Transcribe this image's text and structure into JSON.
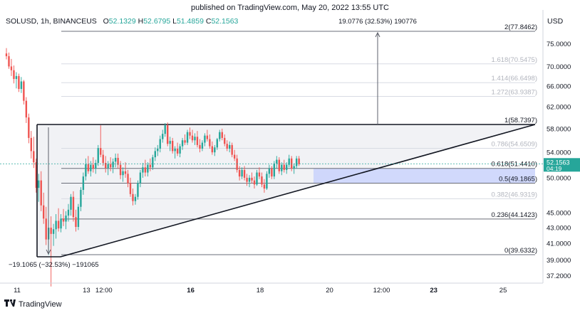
{
  "published": "published on TradingView.com, May 20, 2022 13:55 UTC",
  "legend": {
    "symbol": "SOLUSD, 1h, BINANCEUS",
    "o_label": "O",
    "o": "52.1329",
    "h_label": "H",
    "h": "52.6795",
    "l_label": "L",
    "l": "51.4859",
    "c_label": "C",
    "c": "52.1563"
  },
  "currency": "USD",
  "footer": {
    "brand": "TradingView"
  },
  "colors": {
    "up": "#26a69a",
    "down": "#ef5350",
    "fib_band": "#c9d2fb",
    "triangle_fill": "#f1f2f5",
    "last_price_bg": "#26a69a"
  },
  "chart_data": {
    "type": "candlestick",
    "symbol": "SOLUSD",
    "interval": "1h",
    "exchange": "BINANCEUS",
    "ylim": [
      36.2,
      84.5
    ],
    "y_scale": "log",
    "y_ticks": [
      "75.0000",
      "70.0000",
      "66.0000",
      "62.0000",
      "58.0000",
      "54.0000",
      "50.0000",
      "45.0000",
      "43.0000",
      "41.0000",
      "39.0000",
      "37.2000"
    ],
    "x_ticks": [
      {
        "label": "11",
        "x": 0
      },
      {
        "label": "13",
        "x": 48
      },
      {
        "label": "12:00",
        "x": 60
      },
      {
        "label": "16",
        "x": 120
      },
      {
        "label": "18",
        "x": 168
      },
      {
        "label": "20",
        "x": 216
      },
      {
        "label": "12:00",
        "x": 252
      },
      {
        "label": "23",
        "x": 288
      },
      {
        "label": "25",
        "x": 336
      }
    ],
    "x_tick_bold": [
      "16",
      "23"
    ],
    "last_price": "52.1563",
    "countdown": "04:19",
    "fib_levels": [
      {
        "ratio": "2",
        "price": "77.8462",
        "label": "2(77.8462)",
        "faded": false
      },
      {
        "ratio": "1.618",
        "price": "70.5475",
        "label": "1.618(70.5475)",
        "faded": true
      },
      {
        "ratio": "1.414",
        "price": "66.6498",
        "label": "1.414(66.6498)",
        "faded": true
      },
      {
        "ratio": "1.272",
        "price": "63.9387",
        "label": "1.272(63.9387)",
        "faded": true
      },
      {
        "ratio": "1",
        "price": "58.7397",
        "label": "1(58.7397)",
        "faded": false
      },
      {
        "ratio": "0.786",
        "price": "54.6509",
        "label": "0.786(54.6509)",
        "faded": true
      },
      {
        "ratio": "0.618",
        "price": "51.4410",
        "label": "0.618(51.4410)",
        "faded": false
      },
      {
        "ratio": "0.5",
        "price": "49.1865",
        "label": "0.5(49.1865)",
        "faded": false
      },
      {
        "ratio": "0.382",
        "price": "46.9319",
        "label": "0.382(46.9319)",
        "faded": true
      },
      {
        "ratio": "0.236",
        "price": "44.1423",
        "label": "0.236(44.1423)",
        "faded": false
      },
      {
        "ratio": "0",
        "price": "39.6332",
        "label": "0(39.6332)",
        "faded": false
      }
    ],
    "measure_up_label": "19.0776 (32.53%) 190776",
    "measure_down_label": "−19.1065 (−32.53%) −191065",
    "candles": [
      [
        72.8,
        74.0,
        71.5,
        72.2
      ],
      [
        72.2,
        73.0,
        69.5,
        70.0
      ],
      [
        70.0,
        71.6,
        68.0,
        69.2
      ],
      [
        69.2,
        70.2,
        66.5,
        67.4
      ],
      [
        67.4,
        68.8,
        65.5,
        68.0
      ],
      [
        68.0,
        68.5,
        64.8,
        65.4
      ],
      [
        65.4,
        67.8,
        64.6,
        66.9
      ],
      [
        66.9,
        67.2,
        62.4,
        63.1
      ],
      [
        63.1,
        63.8,
        59.0,
        60.0
      ],
      [
        60.0,
        60.7,
        55.5,
        56.4
      ],
      [
        56.4,
        57.6,
        53.0,
        54.2
      ],
      [
        54.2,
        56.6,
        51.5,
        52.4
      ],
      [
        52.4,
        53.0,
        47.8,
        48.5
      ],
      [
        48.5,
        50.6,
        46.5,
        49.6
      ],
      [
        49.6,
        51.0,
        45.2,
        46.0
      ],
      [
        46.0,
        47.8,
        43.5,
        44.2
      ],
      [
        44.2,
        45.8,
        40.8,
        41.5
      ],
      [
        41.5,
        44.0,
        39.6,
        43.0
      ],
      [
        43.0,
        44.5,
        36.0,
        42.2
      ],
      [
        42.2,
        43.5,
        40.7,
        42.8
      ],
      [
        42.8,
        44.8,
        41.6,
        43.9
      ],
      [
        43.9,
        45.6,
        42.5,
        42.9
      ],
      [
        42.9,
        44.8,
        42.4,
        44.2
      ],
      [
        44.2,
        45.5,
        43.2,
        43.8
      ],
      [
        43.8,
        45.2,
        42.8,
        44.6
      ],
      [
        44.6,
        46.2,
        43.8,
        45.4
      ],
      [
        45.4,
        47.6,
        44.6,
        47.2
      ],
      [
        47.2,
        48.0,
        43.8,
        44.4
      ],
      [
        44.4,
        45.4,
        42.5,
        43.1
      ],
      [
        43.1,
        46.2,
        42.7,
        45.8
      ],
      [
        45.8,
        48.6,
        45.2,
        48.2
      ],
      [
        48.2,
        50.8,
        47.5,
        50.2
      ],
      [
        50.2,
        53.0,
        49.6,
        52.1
      ],
      [
        52.1,
        53.4,
        50.6,
        51.0
      ],
      [
        51.0,
        52.6,
        50.2,
        52.0
      ],
      [
        52.0,
        53.2,
        50.8,
        51.4
      ],
      [
        51.4,
        52.8,
        50.6,
        52.3
      ],
      [
        52.3,
        55.2,
        51.8,
        54.7
      ],
      [
        54.7,
        58.6,
        53.2,
        53.6
      ],
      [
        53.6,
        54.4,
        51.8,
        52.3
      ],
      [
        52.3,
        53.4,
        50.8,
        51.5
      ],
      [
        51.5,
        52.6,
        50.4,
        52.1
      ],
      [
        52.1,
        53.2,
        51.0,
        51.6
      ],
      [
        51.6,
        53.0,
        50.7,
        52.5
      ],
      [
        52.5,
        53.8,
        51.6,
        53.1
      ],
      [
        53.1,
        53.8,
        51.4,
        52.0
      ],
      [
        52.0,
        52.6,
        49.8,
        50.4
      ],
      [
        50.4,
        51.6,
        49.4,
        51.0
      ],
      [
        51.0,
        52.4,
        50.0,
        50.6
      ],
      [
        50.6,
        51.2,
        48.6,
        49.2
      ],
      [
        49.2,
        50.0,
        47.2,
        47.6
      ],
      [
        47.6,
        48.4,
        46.0,
        46.6
      ],
      [
        46.6,
        47.6,
        46.1,
        47.2
      ],
      [
        47.2,
        49.6,
        46.8,
        49.2
      ],
      [
        49.2,
        51.2,
        48.6,
        50.8
      ],
      [
        50.8,
        52.3,
        50.0,
        51.6
      ],
      [
        51.6,
        52.8,
        50.2,
        50.8
      ],
      [
        50.8,
        52.4,
        50.2,
        52.0
      ],
      [
        52.0,
        53.0,
        51.0,
        51.6
      ],
      [
        51.6,
        53.6,
        51.2,
        53.2
      ],
      [
        53.2,
        54.8,
        52.6,
        54.2
      ],
      [
        54.2,
        55.2,
        53.4,
        54.6
      ],
      [
        54.6,
        56.8,
        54.0,
        56.2
      ],
      [
        56.2,
        57.8,
        55.6,
        57.1
      ],
      [
        57.1,
        59.0,
        56.6,
        58.6
      ],
      [
        58.6,
        59.1,
        55.0,
        55.4
      ],
      [
        55.4,
        56.6,
        54.2,
        55.9
      ],
      [
        55.9,
        56.4,
        53.8,
        54.2
      ],
      [
        54.2,
        55.0,
        53.0,
        54.6
      ],
      [
        54.6,
        55.6,
        53.4,
        53.8
      ],
      [
        53.8,
        55.4,
        53.2,
        55.0
      ],
      [
        55.0,
        56.4,
        54.4,
        56.0
      ],
      [
        56.0,
        57.0,
        55.2,
        55.6
      ],
      [
        55.6,
        57.8,
        55.2,
        57.4
      ],
      [
        57.4,
        58.2,
        56.2,
        56.8
      ],
      [
        56.8,
        57.8,
        55.6,
        56.0
      ],
      [
        56.0,
        57.2,
        55.2,
        56.6
      ],
      [
        56.6,
        57.6,
        54.8,
        55.2
      ],
      [
        55.2,
        56.2,
        54.0,
        54.6
      ],
      [
        54.6,
        56.0,
        54.2,
        55.6
      ],
      [
        55.6,
        57.2,
        55.0,
        56.8
      ],
      [
        56.8,
        57.8,
        55.8,
        56.2
      ],
      [
        56.2,
        57.0,
        54.6,
        55.0
      ],
      [
        55.0,
        55.8,
        53.6,
        54.0
      ],
      [
        54.0,
        55.2,
        53.4,
        54.8
      ],
      [
        54.8,
        56.4,
        54.4,
        56.2
      ],
      [
        56.2,
        57.8,
        55.8,
        57.4
      ],
      [
        57.4,
        58.0,
        56.0,
        56.4
      ],
      [
        56.4,
        57.0,
        55.0,
        55.4
      ],
      [
        55.4,
        56.0,
        54.2,
        54.6
      ],
      [
        54.6,
        55.8,
        54.0,
        55.2
      ],
      [
        55.2,
        55.6,
        53.2,
        53.6
      ],
      [
        53.6,
        54.4,
        52.6,
        53.0
      ],
      [
        53.0,
        53.6,
        50.8,
        51.2
      ],
      [
        51.2,
        51.8,
        49.6,
        50.2
      ],
      [
        50.2,
        51.6,
        49.8,
        51.2
      ],
      [
        51.2,
        51.8,
        49.6,
        50.0
      ],
      [
        50.0,
        50.6,
        48.8,
        49.4
      ],
      [
        49.4,
        50.4,
        48.6,
        50.0
      ],
      [
        50.0,
        50.8,
        49.2,
        49.6
      ],
      [
        49.6,
        50.2,
        48.4,
        49.0
      ],
      [
        49.0,
        51.2,
        48.8,
        50.8
      ],
      [
        50.8,
        51.6,
        49.8,
        50.2
      ],
      [
        50.2,
        50.8,
        48.6,
        49.0
      ],
      [
        49.0,
        49.8,
        47.8,
        48.4
      ],
      [
        48.4,
        51.0,
        48.2,
        50.6
      ],
      [
        50.6,
        52.0,
        50.0,
        51.4
      ],
      [
        51.4,
        51.8,
        49.8,
        50.2
      ],
      [
        50.2,
        52.6,
        49.8,
        52.2
      ],
      [
        52.2,
        53.4,
        51.4,
        52.8
      ],
      [
        52.8,
        53.2,
        50.6,
        51.0
      ],
      [
        51.0,
        52.4,
        50.4,
        52.0
      ],
      [
        52.0,
        52.8,
        50.8,
        51.2
      ],
      [
        51.2,
        52.4,
        50.6,
        52.0
      ],
      [
        52.0,
        53.6,
        51.6,
        53.0
      ],
      [
        53.0,
        53.4,
        51.0,
        51.4
      ],
      [
        51.4,
        52.2,
        50.6,
        51.8
      ],
      [
        51.8,
        53.4,
        51.4,
        53.0
      ],
      [
        53.0,
        53.4,
        51.8,
        52.1
      ]
    ]
  }
}
